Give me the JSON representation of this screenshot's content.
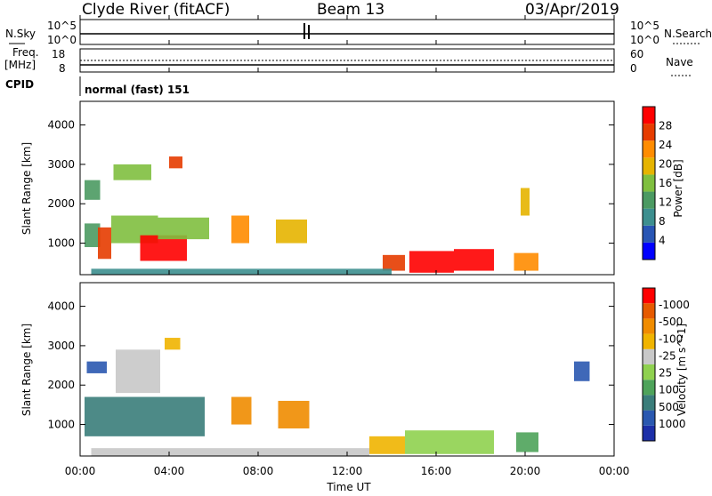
{
  "header": {
    "station": "Clyde River (fitACF)",
    "beam": "Beam 13",
    "date": "03/Apr/2019"
  },
  "panels": {
    "nsky": {
      "left_label": "N.Sky",
      "right_label": "N.Search",
      "left_top_tick": "10^5",
      "left_bottom_tick": "10^0",
      "right_top_tick": "10^5",
      "right_bottom_tick": "10^0"
    },
    "freq": {
      "left_label_line1": "Freq.",
      "left_label_line2": "[MHz]",
      "right_label": "Nave",
      "left_top_tick": "18",
      "left_bottom_tick": "8",
      "right_top_tick": "60",
      "right_bottom_tick": "0"
    },
    "cpid": {
      "label": "CPID",
      "value": "normal (fast) 151"
    }
  },
  "colors": {
    "power_scale": [
      "#0000ff",
      "#2855b4",
      "#3d8f8f",
      "#4b9a62",
      "#7fbf3f",
      "#e6b400",
      "#ff8c00",
      "#e63c00",
      "#ff0000"
    ],
    "velocity_scale": [
      "#1c2fa8",
      "#2a58b0",
      "#3a7d7a",
      "#4ea35a",
      "#8fd14f",
      "#c8c8c8",
      "#f0b400",
      "#f08c00",
      "#e65a00",
      "#ff0000"
    ]
  },
  "chart_data": [
    {
      "type": "heatmap",
      "name": "power",
      "xlabel": "Time UT",
      "ylabel": "Slant Range [km]",
      "x_ticks": [
        "00:00",
        "04:00",
        "08:00",
        "12:00",
        "16:00",
        "20:00",
        "00:00"
      ],
      "xlim": [
        0,
        24
      ],
      "y_ticks": [
        1000,
        2000,
        3000,
        4000
      ],
      "ylim": [
        200,
        4600
      ],
      "colorbar_label": "Power [dB]",
      "colorbar_ticks": [
        "4",
        "8",
        "12",
        "16",
        "20",
        "24",
        "28"
      ],
      "colorbar_range": [
        0,
        30
      ],
      "regions": [
        {
          "t0": 0.2,
          "t1": 0.9,
          "r0": 900,
          "r1": 1500,
          "level": 12
        },
        {
          "t0": 0.8,
          "t1": 1.4,
          "r0": 600,
          "r1": 1400,
          "level": 26
        },
        {
          "t0": 1.4,
          "t1": 3.5,
          "r0": 1000,
          "r1": 1700,
          "level": 14
        },
        {
          "t0": 2.7,
          "t1": 4.8,
          "r0": 550,
          "r1": 1200,
          "level": 28
        },
        {
          "t0": 3.5,
          "t1": 5.8,
          "r0": 1100,
          "r1": 1650,
          "level": 16
        },
        {
          "t0": 0.2,
          "t1": 0.9,
          "r0": 2100,
          "r1": 2600,
          "level": 10
        },
        {
          "t0": 1.5,
          "t1": 3.2,
          "r0": 2600,
          "r1": 3000,
          "level": 14
        },
        {
          "t0": 4.0,
          "t1": 4.6,
          "r0": 2900,
          "r1": 3200,
          "level": 24
        },
        {
          "t0": 6.8,
          "t1": 7.6,
          "r0": 1000,
          "r1": 1700,
          "level": 20
        },
        {
          "t0": 8.8,
          "t1": 10.2,
          "r0": 1000,
          "r1": 1600,
          "level": 18
        },
        {
          "t0": 13.6,
          "t1": 14.6,
          "r0": 300,
          "r1": 700,
          "level": 26
        },
        {
          "t0": 14.8,
          "t1": 16.8,
          "r0": 250,
          "r1": 800,
          "level": 29
        },
        {
          "t0": 16.8,
          "t1": 18.6,
          "r0": 300,
          "r1": 850,
          "level": 28
        },
        {
          "t0": 19.5,
          "t1": 20.6,
          "r0": 300,
          "r1": 750,
          "level": 22
        },
        {
          "t0": 0.5,
          "t1": 14.0,
          "r0": 200,
          "r1": 350,
          "level": 8
        },
        {
          "t0": 19.8,
          "t1": 20.2,
          "r0": 1700,
          "r1": 2400,
          "level": 18
        }
      ]
    },
    {
      "type": "heatmap",
      "name": "velocity",
      "xlabel": "Time UT",
      "ylabel": "Slant Range [km]",
      "x_ticks": [
        "00:00",
        "04:00",
        "08:00",
        "12:00",
        "16:00",
        "20:00",
        "00:00"
      ],
      "xlim": [
        0,
        24
      ],
      "y_ticks": [
        1000,
        2000,
        3000,
        4000
      ],
      "ylim": [
        200,
        4600
      ],
      "colorbar_label": "Velocity [m s^-1]",
      "colorbar_ticks": [
        "1000",
        "500",
        "100",
        "25",
        "-25",
        "-100",
        "-500",
        "-1000"
      ],
      "regions": [
        {
          "t0": 0.3,
          "t1": 1.2,
          "r0": 2300,
          "r1": 2600,
          "level": 1
        },
        {
          "t0": 0.2,
          "t1": 5.6,
          "r0": 700,
          "r1": 1700,
          "level": 2
        },
        {
          "t0": 1.6,
          "t1": 3.6,
          "r0": 1800,
          "r1": 2900,
          "level": 5
        },
        {
          "t0": 3.8,
          "t1": 4.5,
          "r0": 2900,
          "r1": 3200,
          "level": 6
        },
        {
          "t0": 6.8,
          "t1": 7.7,
          "r0": 1000,
          "r1": 1700,
          "level": 7
        },
        {
          "t0": 8.9,
          "t1": 10.3,
          "r0": 900,
          "r1": 1600,
          "level": 7
        },
        {
          "t0": 13.0,
          "t1": 14.6,
          "r0": 250,
          "r1": 700,
          "level": 6
        },
        {
          "t0": 14.6,
          "t1": 18.6,
          "r0": 250,
          "r1": 850,
          "level": 4
        },
        {
          "t0": 19.6,
          "t1": 20.6,
          "r0": 300,
          "r1": 800,
          "level": 3
        },
        {
          "t0": 0.5,
          "t1": 13.0,
          "r0": 200,
          "r1": 400,
          "level": 5
        },
        {
          "t0": 22.2,
          "t1": 22.9,
          "r0": 2100,
          "r1": 2600,
          "level": 1
        }
      ]
    }
  ]
}
